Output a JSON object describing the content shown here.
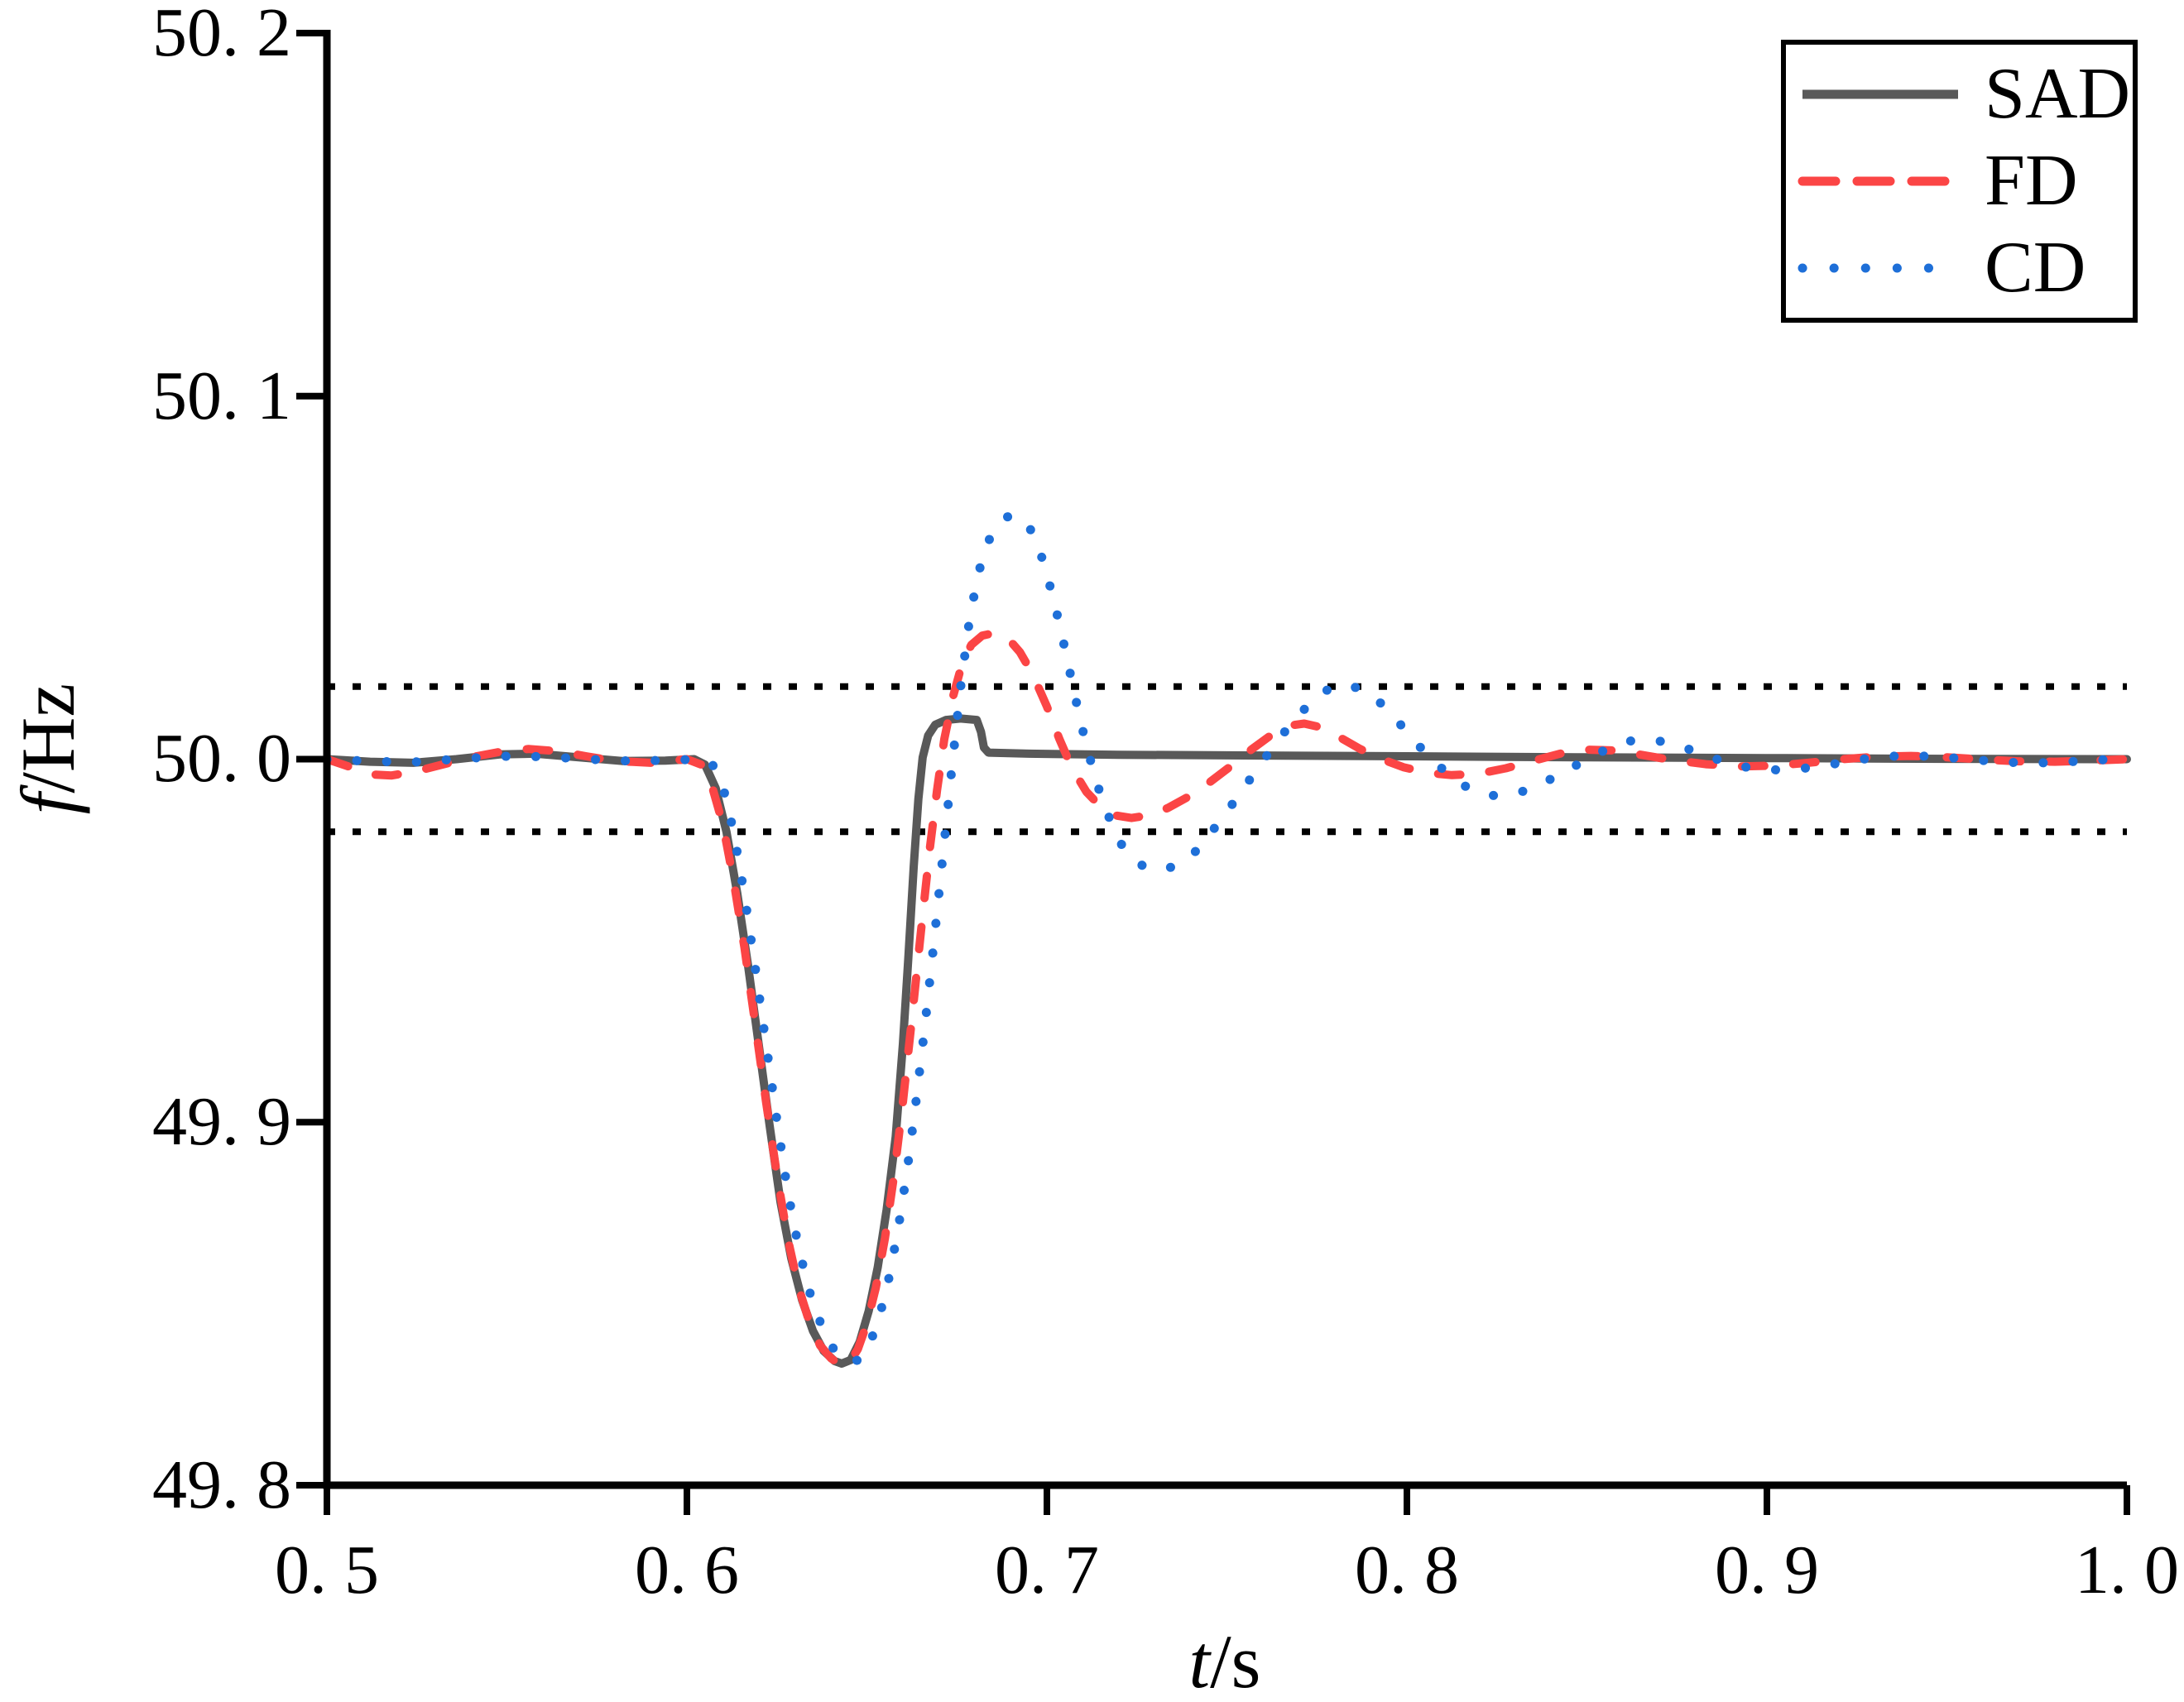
{
  "axes": {
    "x": {
      "label_var": "t",
      "label_unit": "/s",
      "min": 0.5,
      "max": 1.0,
      "tick_values": [
        0.5,
        0.6,
        0.7,
        0.8,
        0.9,
        1.0
      ],
      "tick_labels": [
        "0. 5",
        "0. 6",
        "0. 7",
        "0. 8",
        "0. 9",
        "1. 0"
      ]
    },
    "y": {
      "label_var": "f",
      "label_unit": "/Hz",
      "min": 49.8,
      "max": 50.2,
      "tick_values": [
        50.2,
        50.1,
        50.0,
        49.9,
        49.8
      ],
      "tick_labels": [
        "50. 2",
        "50. 1",
        "50. 0",
        "49. 9",
        "49. 8"
      ]
    }
  },
  "legend": {
    "items": [
      {
        "label": "SAD",
        "style": "solid",
        "color": "#595959"
      },
      {
        "label": "FD",
        "style": "dashed",
        "color": "#fb4545"
      },
      {
        "label": "CD",
        "style": "dotted",
        "color": "#1e6fd8"
      }
    ]
  },
  "chart_data": {
    "type": "line",
    "title": "",
    "xlabel": "t/s",
    "ylabel": "f/Hz",
    "xlim": [
      0.5,
      1.0
    ],
    "ylim": [
      49.8,
      50.2
    ],
    "grid": false,
    "legend_position": "top-right",
    "reference_lines": [
      {
        "value": 50.02,
        "style": "dotted",
        "color": "#000000"
      },
      {
        "value": 49.98,
        "style": "dotted",
        "color": "#000000"
      }
    ],
    "series": [
      {
        "name": "SAD",
        "style": "solid",
        "color": "#595959",
        "points": [
          [
            0.5,
            50.0
          ],
          [
            0.512,
            49.9993
          ],
          [
            0.524,
            49.999
          ],
          [
            0.536,
            50.0
          ],
          [
            0.548,
            50.0013
          ],
          [
            0.558,
            50.0015
          ],
          [
            0.57,
            50.0005
          ],
          [
            0.582,
            49.9995
          ],
          [
            0.594,
            49.9996
          ],
          [
            0.602,
            50.0
          ],
          [
            0.605,
            49.9985
          ],
          [
            0.608,
            49.992
          ],
          [
            0.611,
            49.98
          ],
          [
            0.614,
            49.963
          ],
          [
            0.617,
            49.943
          ],
          [
            0.62,
            49.921
          ],
          [
            0.623,
            49.899
          ],
          [
            0.626,
            49.878
          ],
          [
            0.629,
            49.8625
          ],
          [
            0.632,
            49.851
          ],
          [
            0.635,
            49.8425
          ],
          [
            0.638,
            49.837
          ],
          [
            0.641,
            49.8342
          ],
          [
            0.643,
            49.8335
          ],
          [
            0.6455,
            49.8345
          ],
          [
            0.648,
            49.8395
          ],
          [
            0.6505,
            49.848
          ],
          [
            0.653,
            49.86
          ],
          [
            0.6555,
            49.876
          ],
          [
            0.658,
            49.896
          ],
          [
            0.66,
            49.9215
          ],
          [
            0.6615,
            49.945
          ],
          [
            0.663,
            49.9705
          ],
          [
            0.6643,
            49.989
          ],
          [
            0.6655,
            50.0005
          ],
          [
            0.667,
            50.0065
          ],
          [
            0.669,
            50.0095
          ],
          [
            0.672,
            50.0108
          ],
          [
            0.676,
            50.0112
          ],
          [
            0.6805,
            50.0108
          ],
          [
            0.6817,
            50.0075
          ],
          [
            0.6825,
            50.0032
          ],
          [
            0.6838,
            50.0018
          ],
          [
            0.695,
            50.0015
          ],
          [
            0.72,
            50.0012
          ],
          [
            0.76,
            50.001
          ],
          [
            0.8,
            50.0008
          ],
          [
            0.85,
            50.0005
          ],
          [
            0.9,
            50.0003
          ],
          [
            0.95,
            50.0001
          ],
          [
            1.0,
            50.0
          ]
        ]
      },
      {
        "name": "FD",
        "style": "dashed",
        "color": "#fb4545",
        "points": [
          [
            0.5,
            50.0
          ],
          [
            0.506,
            49.998
          ],
          [
            0.512,
            49.9958
          ],
          [
            0.518,
            49.9955
          ],
          [
            0.525,
            49.9967
          ],
          [
            0.532,
            49.9985
          ],
          [
            0.54,
            50.0005
          ],
          [
            0.548,
            50.002
          ],
          [
            0.556,
            50.0028
          ],
          [
            0.564,
            50.0022
          ],
          [
            0.572,
            50.0008
          ],
          [
            0.58,
            49.9995
          ],
          [
            0.59,
            49.999
          ],
          [
            0.6,
            50.0
          ],
          [
            0.604,
            49.9985
          ],
          [
            0.607,
            49.9925
          ],
          [
            0.61,
            49.982
          ],
          [
            0.613,
            49.9665
          ],
          [
            0.616,
            49.948
          ],
          [
            0.619,
            49.927
          ],
          [
            0.622,
            49.9055
          ],
          [
            0.625,
            49.8855
          ],
          [
            0.628,
            49.868
          ],
          [
            0.631,
            49.8545
          ],
          [
            0.634,
            49.845
          ],
          [
            0.637,
            49.8385
          ],
          [
            0.64,
            49.835
          ],
          [
            0.6425,
            49.8332
          ],
          [
            0.645,
            49.8335
          ],
          [
            0.6475,
            49.8375
          ],
          [
            0.65,
            49.8445
          ],
          [
            0.6525,
            49.8545
          ],
          [
            0.655,
            49.868
          ],
          [
            0.6575,
            49.885
          ],
          [
            0.66,
            49.9055
          ],
          [
            0.6625,
            49.9285
          ],
          [
            0.665,
            49.9525
          ],
          [
            0.6675,
            49.9755
          ],
          [
            0.6695,
            49.9915
          ],
          [
            0.6715,
            50.0055
          ],
          [
            0.674,
            50.0175
          ],
          [
            0.6765,
            50.0265
          ],
          [
            0.679,
            50.0315
          ],
          [
            0.682,
            50.034
          ],
          [
            0.6855,
            50.0348
          ],
          [
            0.689,
            50.0335
          ],
          [
            0.6925,
            50.0295
          ],
          [
            0.696,
            50.0235
          ],
          [
            0.7,
            50.0145
          ],
          [
            0.7035,
            50.0055
          ],
          [
            0.707,
            49.9975
          ],
          [
            0.711,
            49.991
          ],
          [
            0.715,
            49.9868
          ],
          [
            0.719,
            49.9845
          ],
          [
            0.7235,
            49.9838
          ],
          [
            0.728,
            49.9845
          ],
          [
            0.7335,
            49.9865
          ],
          [
            0.739,
            49.9895
          ],
          [
            0.745,
            49.9935
          ],
          [
            0.751,
            49.998
          ],
          [
            0.757,
            50.0028
          ],
          [
            0.7625,
            50.0068
          ],
          [
            0.767,
            50.0092
          ],
          [
            0.7715,
            50.0098
          ],
          [
            0.776,
            50.0088
          ],
          [
            0.781,
            50.0062
          ],
          [
            0.787,
            50.0028
          ],
          [
            0.793,
            50.0
          ],
          [
            0.799,
            49.9978
          ],
          [
            0.806,
            49.9962
          ],
          [
            0.8125,
            49.9956
          ],
          [
            0.82,
            49.996
          ],
          [
            0.8275,
            49.9975
          ],
          [
            0.835,
            49.9995
          ],
          [
            0.8425,
            50.0015
          ],
          [
            0.85,
            50.0026
          ],
          [
            0.8575,
            50.0024
          ],
          [
            0.865,
            50.0012
          ],
          [
            0.8735,
            49.9998
          ],
          [
            0.883,
            49.9986
          ],
          [
            0.8925,
            49.998
          ],
          [
            0.902,
            49.9982
          ],
          [
            0.9115,
            49.999
          ],
          [
            0.921,
            50.0
          ],
          [
            0.9305,
            50.0007
          ],
          [
            0.94,
            50.0009
          ],
          [
            0.95,
            50.0005
          ],
          [
            0.96,
            49.9999
          ],
          [
            0.97,
            49.9994
          ],
          [
            0.98,
            49.9993
          ],
          [
            0.99,
            49.9996
          ],
          [
            1.0,
            50.0
          ]
        ]
      },
      {
        "name": "CD",
        "style": "dotted",
        "color": "#1e6fd8",
        "points": [
          [
            0.5,
            50.0
          ],
          [
            0.512,
            49.9994
          ],
          [
            0.524,
            49.9992
          ],
          [
            0.536,
            50.0
          ],
          [
            0.548,
            50.0008
          ],
          [
            0.56,
            50.0007
          ],
          [
            0.572,
            50.0
          ],
          [
            0.584,
            49.9995
          ],
          [
            0.596,
            49.9997
          ],
          [
            0.603,
            50.0
          ],
          [
            0.607,
            49.9988
          ],
          [
            0.61,
            49.9925
          ],
          [
            0.613,
            49.98
          ],
          [
            0.616,
            49.9625
          ],
          [
            0.619,
            49.9425
          ],
          [
            0.622,
            49.9215
          ],
          [
            0.625,
            49.9005
          ],
          [
            0.628,
            49.881
          ],
          [
            0.631,
            49.8655
          ],
          [
            0.634,
            49.8535
          ],
          [
            0.637,
            49.845
          ],
          [
            0.64,
            49.8385
          ],
          [
            0.643,
            49.835
          ],
          [
            0.646,
            49.8338
          ],
          [
            0.6485,
            49.835
          ],
          [
            0.651,
            49.8395
          ],
          [
            0.6535,
            49.8465
          ],
          [
            0.656,
            49.8565
          ],
          [
            0.6585,
            49.8695
          ],
          [
            0.661,
            49.8855
          ],
          [
            0.6635,
            49.9045
          ],
          [
            0.666,
            49.9255
          ],
          [
            0.6685,
            49.9485
          ],
          [
            0.671,
            49.9725
          ],
          [
            0.6735,
            49.9965
          ],
          [
            0.676,
            50.0195
          ],
          [
            0.6785,
            50.0385
          ],
          [
            0.681,
            50.0515
          ],
          [
            0.684,
            50.0605
          ],
          [
            0.687,
            50.0655
          ],
          [
            0.69,
            50.0673
          ],
          [
            0.693,
            50.0665
          ],
          [
            0.696,
            50.0625
          ],
          [
            0.699,
            50.0545
          ],
          [
            0.702,
            50.0435
          ],
          [
            0.705,
            50.0305
          ],
          [
            0.708,
            50.0165
          ],
          [
            0.711,
            50.0035
          ],
          [
            0.7145,
            49.9915
          ],
          [
            0.718,
            49.982
          ],
          [
            0.7215,
            49.975
          ],
          [
            0.725,
            49.9715
          ],
          [
            0.7285,
            49.9697
          ],
          [
            0.732,
            49.9695
          ],
          [
            0.736,
            49.9707
          ],
          [
            0.7405,
            49.9737
          ],
          [
            0.745,
            49.979
          ],
          [
            0.75,
            49.9855
          ],
          [
            0.755,
            49.9925
          ],
          [
            0.76,
            49.9995
          ],
          [
            0.765,
            50.0063
          ],
          [
            0.77,
            50.0122
          ],
          [
            0.7745,
            50.0168
          ],
          [
            0.779,
            50.0198
          ],
          [
            0.7835,
            50.0205
          ],
          [
            0.788,
            50.019
          ],
          [
            0.793,
            50.0152
          ],
          [
            0.798,
            50.0098
          ],
          [
            0.803,
            50.004
          ],
          [
            0.808,
            49.999
          ],
          [
            0.813,
            49.9945
          ],
          [
            0.818,
            49.9915
          ],
          [
            0.823,
            49.99
          ],
          [
            0.828,
            49.99
          ],
          [
            0.8335,
            49.9915
          ],
          [
            0.839,
            49.994
          ],
          [
            0.845,
            49.9972
          ],
          [
            0.851,
            50.0005
          ],
          [
            0.857,
            50.0035
          ],
          [
            0.862,
            50.005
          ],
          [
            0.867,
            50.0055
          ],
          [
            0.873,
            50.0045
          ],
          [
            0.879,
            50.0025
          ],
          [
            0.886,
            50.0
          ],
          [
            0.893,
            49.998
          ],
          [
            0.9,
            49.997
          ],
          [
            0.9075,
            49.9972
          ],
          [
            0.915,
            49.998
          ],
          [
            0.923,
            49.9995
          ],
          [
            0.931,
            50.0006
          ],
          [
            0.939,
            50.001
          ],
          [
            0.947,
            50.0007
          ],
          [
            0.956,
            50.0
          ],
          [
            0.965,
            49.9992
          ],
          [
            0.9745,
            49.9989
          ],
          [
            0.984,
            49.9993
          ],
          [
            0.992,
            49.9998
          ],
          [
            1.0,
            50.0
          ]
        ]
      }
    ]
  }
}
